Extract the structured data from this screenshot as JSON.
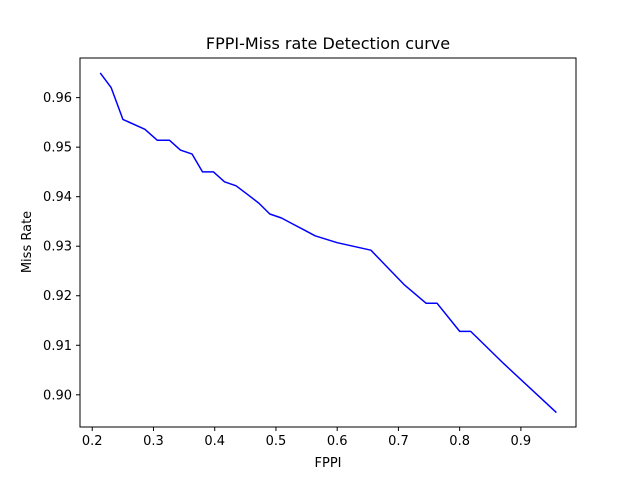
{
  "chart_data": {
    "type": "line",
    "title": "FPPI-Miss rate Detection curve",
    "xlabel": "FPPI",
    "ylabel": "Miss Rate",
    "xlim": [
      0.18,
      0.99
    ],
    "ylim": [
      0.8935,
      0.968
    ],
    "xticks": [
      0.2,
      0.3,
      0.4,
      0.5,
      0.6,
      0.7,
      0.8,
      0.9
    ],
    "xtick_labels": [
      "0.2",
      "0.3",
      "0.4",
      "0.5",
      "0.6",
      "0.7",
      "0.8",
      "0.9"
    ],
    "yticks": [
      0.9,
      0.91,
      0.92,
      0.93,
      0.94,
      0.95,
      0.96
    ],
    "ytick_labels": [
      "0.90",
      "0.91",
      "0.92",
      "0.93",
      "0.94",
      "0.95",
      "0.96"
    ],
    "grid": false,
    "series": [
      {
        "color": "#0000ff",
        "x": [
          0.213,
          0.231,
          0.25,
          0.286,
          0.306,
          0.326,
          0.344,
          0.363,
          0.38,
          0.398,
          0.416,
          0.435,
          0.453,
          0.472,
          0.49,
          0.509,
          0.527,
          0.546,
          0.564,
          0.6,
          0.655,
          0.709,
          0.745,
          0.763,
          0.8,
          0.818,
          0.872,
          0.958
        ],
        "y": [
          0.965,
          0.962,
          0.9556,
          0.9536,
          0.9514,
          0.9514,
          0.9494,
          0.9486,
          0.945,
          0.945,
          0.943,
          0.9422,
          0.9405,
          0.9387,
          0.9365,
          0.9357,
          0.9345,
          0.9333,
          0.9321,
          0.9307,
          0.9292,
          0.9223,
          0.9185,
          0.9185,
          0.9128,
          0.9128,
          0.9063,
          0.8964
        ]
      }
    ]
  }
}
